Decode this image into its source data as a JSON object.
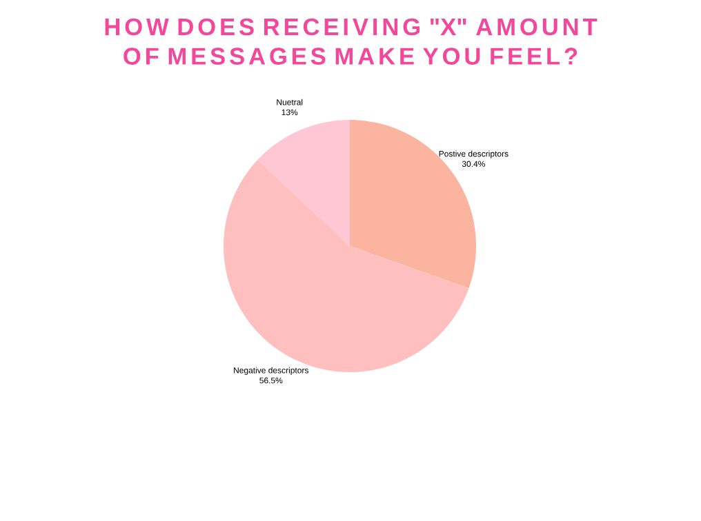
{
  "chart_data": {
    "type": "pie",
    "title": "HOW DOES RECEIVING \"X\" AMOUNT OF MESSAGES MAKE YOU FEEL?",
    "categories": [
      "Postive descriptors",
      "Negative descriptors",
      "Nuetral"
    ],
    "values": [
      30.4,
      56.5,
      13
    ],
    "value_labels": [
      "30.4%",
      "56.5%",
      "13%"
    ],
    "colors": [
      "#fbb4a0",
      "#ffbfbf",
      "#ffc7d4"
    ]
  }
}
